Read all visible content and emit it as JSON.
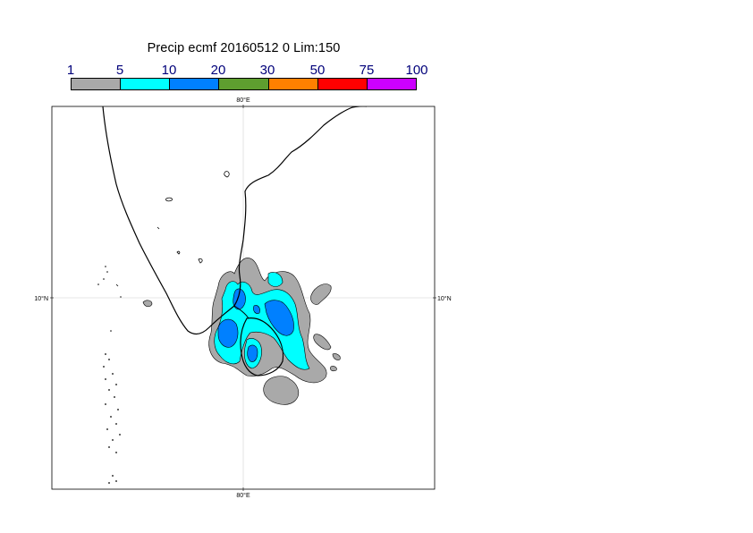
{
  "title": "Precip ecmf 20160512 0 Lim:150",
  "legend": {
    "labels": [
      "1",
      "5",
      "10",
      "20",
      "30",
      "50",
      "75",
      "100"
    ],
    "colors": [
      "#a9a9a9",
      "#00ffff",
      "#0080ff",
      "#5e9e2f",
      "#ff8000",
      "#ff0000",
      "#cc00ff"
    ]
  },
  "map": {
    "lon_label_top": "80°E",
    "lon_label_bottom": "80°E",
    "lat_label_left": "10°N",
    "lat_label_right": "10°N"
  }
}
